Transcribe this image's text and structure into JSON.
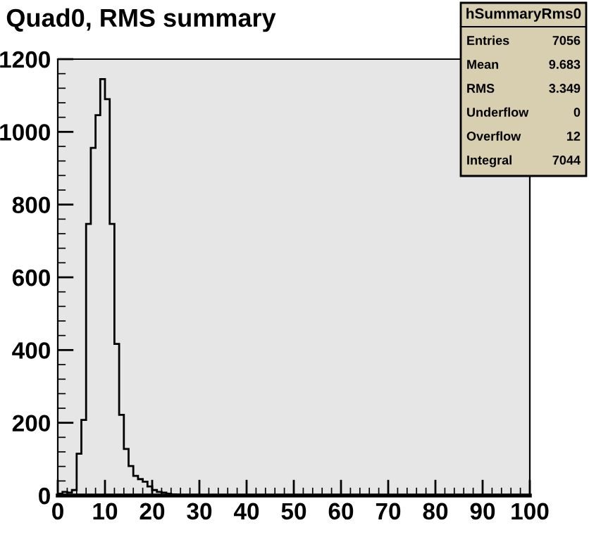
{
  "chart_data": {
    "type": "histogram",
    "title": "Quad0, RMS summary",
    "bins": [
      0,
      1,
      2,
      3,
      4,
      5,
      6,
      7,
      8,
      9,
      10,
      11,
      12,
      13,
      14,
      15,
      16,
      17,
      18,
      19,
      20,
      21,
      22,
      23,
      24,
      25,
      26,
      27,
      28,
      29,
      30,
      31,
      32,
      33,
      34,
      35,
      36,
      37,
      38,
      39,
      40,
      41,
      42,
      43,
      44,
      45,
      46,
      47,
      48,
      49,
      50,
      51,
      52,
      53,
      54,
      55,
      56,
      57,
      58,
      59,
      60,
      61,
      62,
      63,
      64,
      65,
      66,
      67,
      68,
      69,
      70,
      71,
      72,
      73,
      74,
      75,
      76,
      77,
      78,
      79,
      80,
      81,
      82,
      83,
      84,
      85,
      86,
      87,
      88,
      89,
      90,
      91,
      92,
      93,
      94,
      95,
      96,
      97,
      98,
      99,
      100
    ],
    "values": [
      5,
      10,
      8,
      15,
      115,
      208,
      747,
      956,
      1046,
      1145,
      1090,
      747,
      417,
      222,
      128,
      81,
      54,
      45,
      38,
      25,
      15,
      10,
      8,
      5,
      3,
      2,
      1,
      0,
      0,
      0,
      0,
      0,
      0,
      0,
      0,
      0,
      0,
      0,
      0,
      0,
      0,
      0,
      0,
      0,
      0,
      0,
      0,
      0,
      0,
      0,
      0,
      0,
      0,
      0,
      0,
      0,
      0,
      0,
      0,
      0,
      0,
      0,
      0,
      0,
      0,
      0,
      0,
      0,
      0,
      0,
      0,
      0,
      0,
      0,
      0,
      0,
      0,
      0,
      0,
      0,
      0,
      0,
      0,
      0,
      0,
      0,
      0,
      0,
      0,
      0,
      0,
      0,
      0,
      0,
      0,
      0,
      0,
      0,
      0,
      0
    ],
    "color": "#000000",
    "xlim": [
      0,
      100
    ],
    "xticks": [
      0,
      10,
      20,
      30,
      40,
      50,
      60,
      70,
      80,
      90,
      100
    ],
    "ylim": [
      0,
      1200
    ],
    "yticks": [
      0,
      200,
      400,
      600,
      800,
      1000,
      1200
    ],
    "annotations": [
      "hSummaryRms0",
      "Entries",
      "7056",
      "Mean",
      "9.683",
      "RMS",
      "3.349",
      "Underflow",
      "0",
      "Overflow",
      "12",
      "Integral",
      "7044"
    ]
  }
}
